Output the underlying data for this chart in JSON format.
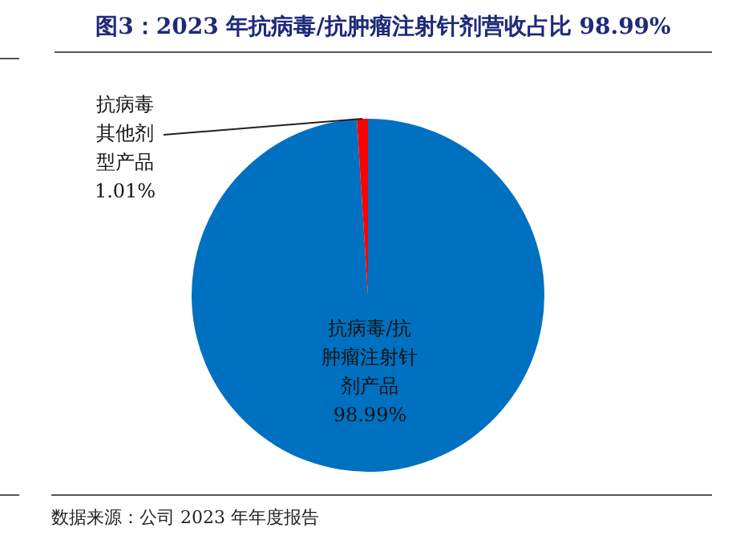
{
  "chart_data": {
    "type": "pie",
    "title": "图3：2023 年抗病毒/抗肿瘤注射针剂营收占比 98.99%",
    "categories": [
      "抗病毒/抗肿瘤注射针剂产品",
      "抗病毒其他剂型产品"
    ],
    "values": [
      98.99,
      1.01
    ],
    "colors": [
      "#0070c0",
      "#ff0000"
    ],
    "value_labels": [
      "98.99%",
      "1.01%"
    ],
    "annotations": [
      "数据来源：公司 2023 年年度报告"
    ],
    "legend": false
  }
}
